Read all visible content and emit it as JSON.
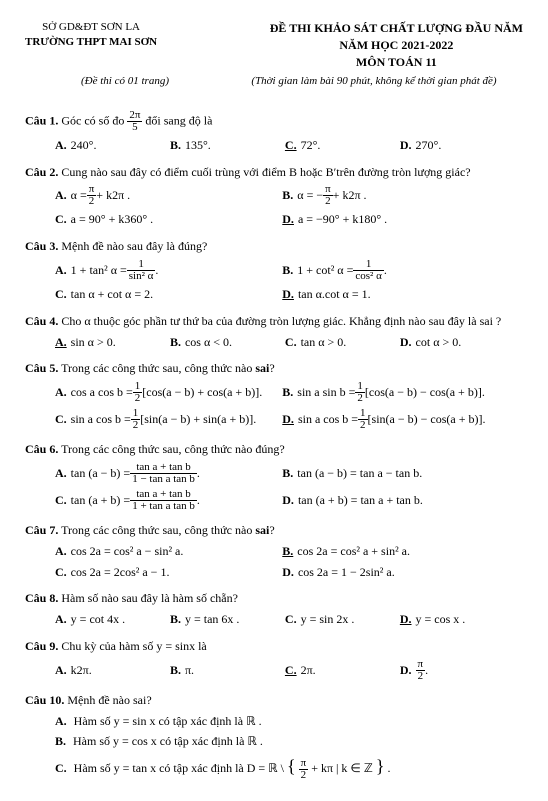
{
  "header": {
    "left_line1": "SỞ GD&ĐT SƠN LA",
    "left_line2": "TRƯỜNG THPT MAI SƠN",
    "right_line1": "ĐỀ THI KHẢO SÁT CHẤT LƯỢNG ĐẦU NĂM",
    "right_line2": "NĂM HỌC 2021-2022",
    "right_line3": "MÔN TOÁN 11",
    "sub_left": "(Đề thi có 01 trang)",
    "sub_right": "(Thời gian làm bài 90 phút, không kể thời gian phát đề)"
  },
  "q1": {
    "label": "Câu 1.",
    "text_before": " Góc có số đo ",
    "frac_num": "2π",
    "frac_den": "5",
    "text_after": " đổi sang độ là",
    "optA": "240°.",
    "optB": "135°.",
    "optC": "72°.",
    "optD": "270°."
  },
  "q2": {
    "label": "Câu 2.",
    "text": " Cung nào sau đây có điểm cuối trùng với điểm B hoặc B′trên đường tròn lượng giác?",
    "optA_before": "α = ",
    "optA_num": "π",
    "optA_den": "2",
    "optA_after": " + k2π .",
    "optB_before": "α = −",
    "optB_num": "π",
    "optB_den": "2",
    "optB_after": " + k2π .",
    "optC": "a = 90° + k360° .",
    "optD": "a = −90° + k180° ."
  },
  "q3": {
    "label": "Câu 3.",
    "text": " Mệnh đề nào sau đây là đúng?",
    "optA_before": "1 + tan² α = ",
    "optA_num": "1",
    "optA_den": "sin² α",
    "optA_after": ".",
    "optB_before": "1 + cot² α = ",
    "optB_num": "1",
    "optB_den": "cos² α",
    "optB_after": ".",
    "optC": "tan α + cot α = 2.",
    "optD": "tan α.cot α = 1."
  },
  "q4": {
    "label": "Câu 4.",
    "text": " Cho α thuộc góc phần tư thứ ba của đường tròn lượng giác. Khẳng định nào sau đây là sai ?",
    "optA": "sin α > 0.",
    "optB": "cos α < 0.",
    "optC": "tan α > 0.",
    "optD": "cot α > 0."
  },
  "q5": {
    "label": "Câu 5.",
    "text": " Trong các công thức sau, công thức nào ",
    "sai": "sai",
    "qm": "?",
    "optA_before": "cos a cos b = ",
    "optA_num": "1",
    "optA_den": "2",
    "optA_after": "[cos(a − b) + cos(a + b)].",
    "optB_before": "sin a sin b = ",
    "optB_num": "1",
    "optB_den": "2",
    "optB_after": "[cos(a − b) − cos(a + b)].",
    "optC_before": "sin a cos b = ",
    "optC_num": "1",
    "optC_den": "2",
    "optC_after": "[sin(a − b) + sin(a + b)].",
    "optD_before": "sin a cos b = ",
    "optD_num": "1",
    "optD_den": "2",
    "optD_after": "[sin(a − b) − cos(a + b)]."
  },
  "q6": {
    "label": "Câu 6.",
    "text": " Trong các công thức sau, công thức nào đúng?",
    "optA_before": "tan (a − b) = ",
    "optA_num": "tan a + tan b",
    "optA_den": "1 − tan a tan b",
    "optA_after": ".",
    "optB": "tan (a − b) = tan a − tan b.",
    "optC_before": "tan (a + b) = ",
    "optC_num": "tan a + tan b",
    "optC_den": "1 + tan a tan b",
    "optC_after": ".",
    "optD": "tan (a + b) = tan a + tan b."
  },
  "q7": {
    "label": "Câu 7.",
    "text": " Trong các công thức sau, công thức nào ",
    "sai": "sai",
    "qm": "?",
    "optA": "cos 2a = cos² a − sin² a.",
    "optB": "cos 2a = cos² a + sin² a.",
    "optC": "cos 2a = 2cos² a − 1.",
    "optD": "cos 2a = 1 − 2sin² a."
  },
  "q8": {
    "label": "Câu 8.",
    "text": " Hàm số nào sau đây là hàm số chẵn?",
    "optA": "y = cot 4x .",
    "optB": "y = tan 6x .",
    "optC": "y = sin 2x .",
    "optD": "y = cos x ."
  },
  "q9": {
    "label": "Câu 9.",
    "text": " Chu kỳ của hàm số  y = sinx  là",
    "optA": "k2π.",
    "optB": "π.",
    "optC": "2π.",
    "optD_num": "π",
    "optD_den": "2",
    "optD_after": "."
  },
  "q10": {
    "label": "Câu 10.",
    "text": " Mệnh đề nào sai?",
    "optA": "Hàm số  y = sin x  có tập xác định là ℝ .",
    "optB": "Hàm số  y = cos x  có tập xác định là ℝ .",
    "optC_before": "Hàm số  y = tan x  có tập xác định là D = ℝ \\ ",
    "optC_set_open": "{",
    "optC_num": "π",
    "optC_den": "2",
    "optC_mid": " + kπ | k ∈ ℤ",
    "optC_set_close": "}",
    "optC_after": "."
  }
}
